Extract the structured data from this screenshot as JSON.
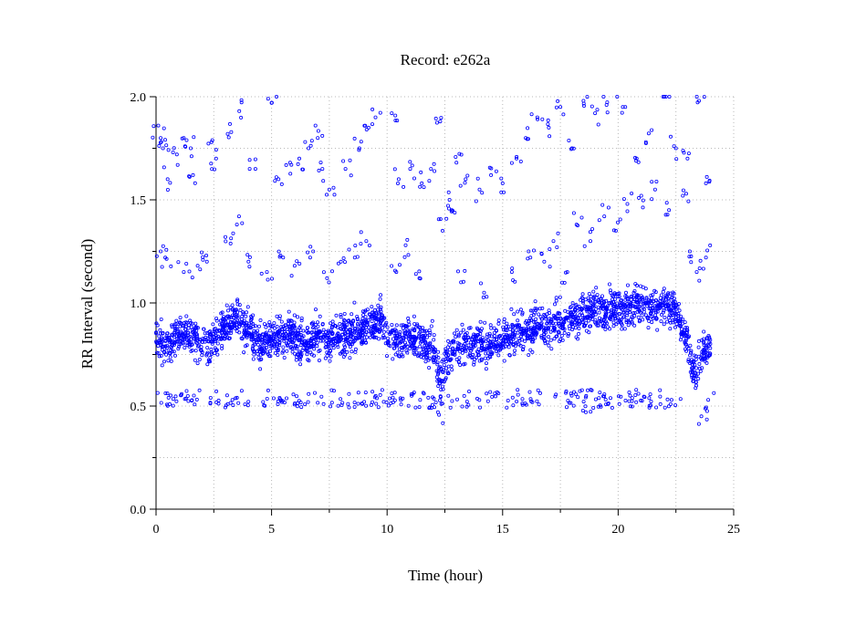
{
  "chart_data": {
    "type": "scatter",
    "title": "Record:  e262a",
    "xlabel": "Time (hour)",
    "ylabel": "RR Interval (second)",
    "xlim": [
      0,
      25
    ],
    "ylim": [
      0,
      2.0
    ],
    "xticks": [
      0,
      5,
      10,
      15,
      20,
      25
    ],
    "xtick_labels": [
      "0",
      "5",
      "10",
      "15",
      "20",
      "25"
    ],
    "yticks": [
      0.0,
      0.5,
      1.0,
      1.5,
      2.0
    ],
    "ytick_labels": [
      "0.0",
      "0.5",
      "1.0",
      "1.5",
      "2.0"
    ],
    "x_minor_step": 2.5,
    "y_minor_step": 0.25,
    "grid": true,
    "marker_color": "#0000ff",
    "marker": "open-circle",
    "series": [
      {
        "values_description_only": false,
        "trend": {
          "x": [
            0,
            0.3,
            0.6,
            1,
            1.5,
            2,
            2.5,
            3,
            3.5,
            4,
            4.5,
            5,
            5.5,
            6,
            6.5,
            7,
            7.5,
            8,
            8.5,
            9,
            9.5,
            9.8,
            10,
            10.5,
            11,
            11.5,
            12,
            12.3,
            12.6,
            13,
            13.5,
            14,
            14.5,
            15,
            15.5,
            16,
            16.5,
            17,
            17.5,
            18,
            18.5,
            19,
            19.5,
            20,
            20.5,
            21,
            21.5,
            22,
            22.5,
            23,
            23.3,
            23.6,
            24
          ],
          "y": [
            0.86,
            0.8,
            0.78,
            0.86,
            0.84,
            0.8,
            0.82,
            0.88,
            0.93,
            0.86,
            0.8,
            0.82,
            0.86,
            0.83,
            0.8,
            0.84,
            0.82,
            0.84,
            0.86,
            0.88,
            0.92,
            0.93,
            0.84,
            0.82,
            0.83,
            0.8,
            0.78,
            0.62,
            0.74,
            0.79,
            0.8,
            0.81,
            0.8,
            0.82,
            0.85,
            0.86,
            0.88,
            0.88,
            0.9,
            0.92,
            0.95,
            0.97,
            0.96,
            0.98,
            0.97,
            1.0,
            0.98,
            0.99,
            0.96,
            0.82,
            0.65,
            0.74,
            0.8
          ],
          "spread": 0.1
        },
        "low_band": {
          "x_range": [
            0,
            22.8
          ],
          "y_range": [
            0.49,
            0.58
          ]
        },
        "outliers": [
          {
            "x": 0.1,
            "y": 1.86
          },
          {
            "x": 0.2,
            "y": 1.8
          },
          {
            "x": 0.3,
            "y": 1.75
          },
          {
            "x": 0.5,
            "y": 1.6
          },
          {
            "x": 0.9,
            "y": 1.72
          },
          {
            "x": 1.2,
            "y": 1.8
          },
          {
            "x": 1.5,
            "y": 1.75
          },
          {
            "x": 1.6,
            "y": 1.62
          },
          {
            "x": 2.4,
            "y": 1.78
          },
          {
            "x": 2.6,
            "y": 1.7
          },
          {
            "x": 3.1,
            "y": 1.82
          },
          {
            "x": 3.6,
            "y": 1.93
          },
          {
            "x": 4.3,
            "y": 1.65
          },
          {
            "x": 5,
            "y": 1.97
          },
          {
            "x": 5.3,
            "y": 1.6
          },
          {
            "x": 5.8,
            "y": 1.68
          },
          {
            "x": 6.2,
            "y": 1.7
          },
          {
            "x": 6.6,
            "y": 1.75
          },
          {
            "x": 7,
            "y": 1.8
          },
          {
            "x": 7.2,
            "y": 1.65
          },
          {
            "x": 7.5,
            "y": 1.55
          },
          {
            "x": 8.2,
            "y": 1.65
          },
          {
            "x": 8.8,
            "y": 1.75
          },
          {
            "x": 9.2,
            "y": 1.85
          },
          {
            "x": 9.5,
            "y": 1.9
          },
          {
            "x": 10.2,
            "y": 1.92
          },
          {
            "x": 10.5,
            "y": 1.6
          },
          {
            "x": 11,
            "y": 1.65
          },
          {
            "x": 11.5,
            "y": 1.58
          },
          {
            "x": 11.9,
            "y": 1.65
          },
          {
            "x": 12.3,
            "y": 1.88
          },
          {
            "x": 12.7,
            "y": 1.5
          },
          {
            "x": 13,
            "y": 1.68
          },
          {
            "x": 13.4,
            "y": 1.6
          },
          {
            "x": 14,
            "y": 1.55
          },
          {
            "x": 14.5,
            "y": 1.62
          },
          {
            "x": 15,
            "y": 1.58
          },
          {
            "x": 15.6,
            "y": 1.7
          },
          {
            "x": 16,
            "y": 1.8
          },
          {
            "x": 16.5,
            "y": 1.9
          },
          {
            "x": 17,
            "y": 1.85
          },
          {
            "x": 17.5,
            "y": 1.95
          },
          {
            "x": 18,
            "y": 1.75
          },
          {
            "x": 18.5,
            "y": 1.98
          },
          {
            "x": 19,
            "y": 1.92
          },
          {
            "x": 19.5,
            "y": 1.96
          },
          {
            "x": 20.2,
            "y": 1.95
          },
          {
            "x": 20.8,
            "y": 1.7
          },
          {
            "x": 21.2,
            "y": 1.78
          },
          {
            "x": 22,
            "y": 2.0
          },
          {
            "x": 22.5,
            "y": 1.75
          },
          {
            "x": 23,
            "y": 1.7
          },
          {
            "x": 23.5,
            "y": 1.98
          },
          {
            "x": 23.8,
            "y": 1.58
          },
          {
            "x": 0.2,
            "y": 1.25
          },
          {
            "x": 0.4,
            "y": 1.22
          },
          {
            "x": 1.2,
            "y": 1.15
          },
          {
            "x": 1.8,
            "y": 1.18
          },
          {
            "x": 2.2,
            "y": 1.2
          },
          {
            "x": 3,
            "y": 1.32
          },
          {
            "x": 3.5,
            "y": 1.38
          },
          {
            "x": 4,
            "y": 1.2
          },
          {
            "x": 4.8,
            "y": 1.15
          },
          {
            "x": 5.5,
            "y": 1.22
          },
          {
            "x": 6,
            "y": 1.18
          },
          {
            "x": 6.8,
            "y": 1.25
          },
          {
            "x": 7.4,
            "y": 1.12
          },
          {
            "x": 8,
            "y": 1.2
          },
          {
            "x": 8.6,
            "y": 1.22
          },
          {
            "x": 9.1,
            "y": 1.3
          },
          {
            "x": 10.4,
            "y": 1.15
          },
          {
            "x": 10.8,
            "y": 1.28
          },
          {
            "x": 11.4,
            "y": 1.12
          },
          {
            "x": 12.4,
            "y": 1.35
          },
          {
            "x": 12.8,
            "y": 1.45
          },
          {
            "x": 13.2,
            "y": 1.1
          },
          {
            "x": 14.2,
            "y": 1.05
          },
          {
            "x": 15.4,
            "y": 1.15
          },
          {
            "x": 16.2,
            "y": 1.22
          },
          {
            "x": 16.8,
            "y": 1.2
          },
          {
            "x": 17.2,
            "y": 1.3
          },
          {
            "x": 17.8,
            "y": 1.15
          },
          {
            "x": 18.2,
            "y": 1.38
          },
          {
            "x": 18.8,
            "y": 1.3
          },
          {
            "x": 19.4,
            "y": 1.42
          },
          {
            "x": 19.9,
            "y": 1.35
          },
          {
            "x": 20.4,
            "y": 1.48
          },
          {
            "x": 21,
            "y": 1.52
          },
          {
            "x": 21.6,
            "y": 1.55
          },
          {
            "x": 22.2,
            "y": 1.45
          },
          {
            "x": 22.8,
            "y": 1.52
          },
          {
            "x": 23.1,
            "y": 1.25
          },
          {
            "x": 23.4,
            "y": 1.15
          },
          {
            "x": 23.8,
            "y": 1.22
          },
          {
            "x": 18.6,
            "y": 0.47
          },
          {
            "x": 12.2,
            "y": 0.47
          },
          {
            "x": 23.6,
            "y": 0.45
          },
          {
            "x": 23.9,
            "y": 0.53
          }
        ]
      }
    ]
  }
}
